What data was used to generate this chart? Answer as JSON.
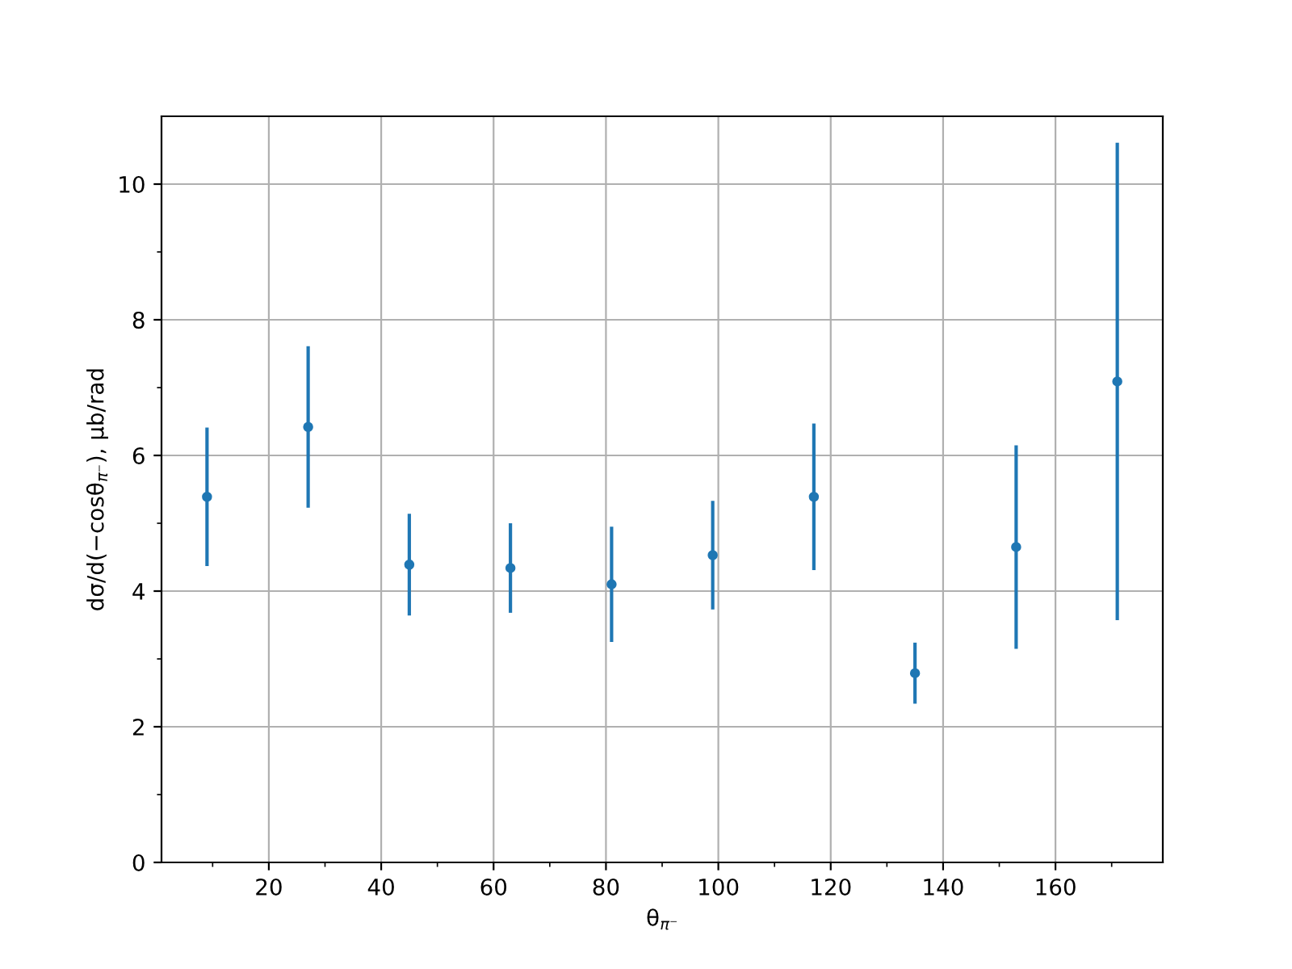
{
  "chart_data": {
    "type": "scatter",
    "xlabel": "θ$_{π⁻}$",
    "ylabel": "dσ/d(−cosθ$_{π⁻}$), μb/rad",
    "x": [
      9,
      27,
      45,
      63,
      81,
      99,
      117,
      135,
      153,
      171
    ],
    "series": [
      {
        "color": "#1f77b4",
        "values": [
          5.39,
          6.42,
          4.39,
          4.34,
          4.1,
          4.53,
          5.39,
          2.79,
          4.65,
          7.09
        ],
        "errors": [
          1.02,
          1.19,
          0.75,
          0.66,
          0.85,
          0.8,
          1.08,
          0.45,
          1.5,
          3.52
        ]
      }
    ],
    "xlim": [
      0.9,
      179.1
    ],
    "ylim": [
      0,
      11
    ],
    "xticks": [
      {
        "value": 10,
        "label": null
      },
      20,
      {
        "value": 30,
        "label": null
      },
      40,
      {
        "value": 50,
        "label": null
      },
      60,
      {
        "value": 70,
        "label": null
      },
      80,
      {
        "value": 90,
        "label": null
      },
      100,
      {
        "value": 110,
        "label": null
      },
      120,
      {
        "value": 130,
        "label": null
      },
      140,
      {
        "value": 150,
        "label": null
      },
      160,
      {
        "value": 170,
        "label": null
      }
    ],
    "yticks": [
      0,
      {
        "value": 1,
        "label": null
      },
      2,
      {
        "value": 3,
        "label": null
      },
      4,
      {
        "value": 5,
        "label": null
      },
      6,
      {
        "value": 7,
        "label": null
      },
      8,
      {
        "value": 9,
        "label": null
      },
      10
    ],
    "grid": true,
    "marker": "circle",
    "legend": false
  }
}
